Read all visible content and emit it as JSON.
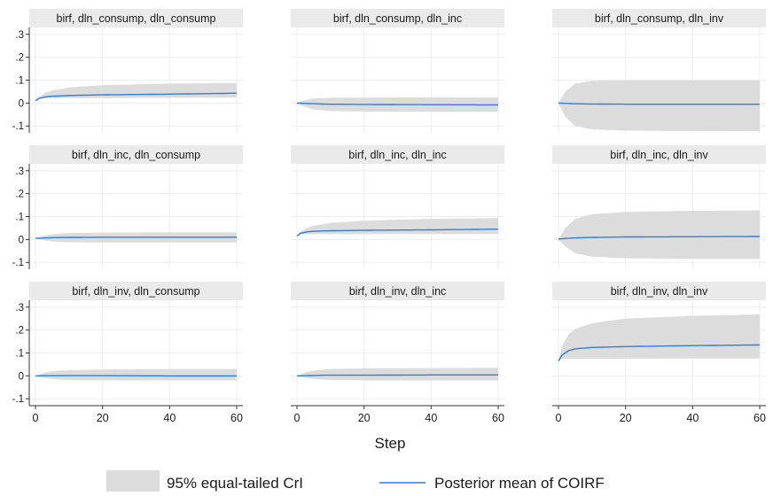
{
  "chart_data": {
    "type": "area",
    "grid": true,
    "legend_position": "bottom",
    "xlabel": "Step",
    "ylabel": "",
    "xlim": [
      0,
      60
    ],
    "ylim": [
      -0.1,
      0.3
    ],
    "x_ticks": [
      "0",
      "20",
      "40",
      "60"
    ],
    "y_ticks": [
      "-.1",
      "0",
      ".1",
      ".2",
      ".3"
    ],
    "colors": {
      "band": "#dcdcdc",
      "line": "#2f7ed8",
      "strip": "#eaeaea"
    },
    "legend": [
      {
        "label": "95% equal-tailed CrI",
        "kind": "band"
      },
      {
        "label": "Posterior mean of COIRF",
        "kind": "line"
      }
    ],
    "panels": [
      {
        "title": "birf, dln_consump, dln_consump",
        "mean": {
          "x": [
            0,
            1,
            3,
            5,
            10,
            20,
            40,
            60
          ],
          "y": [
            0.01,
            0.02,
            0.027,
            0.03,
            0.033,
            0.036,
            0.039,
            0.043
          ]
        },
        "lower": {
          "x": [
            0,
            1,
            3,
            5,
            10,
            20,
            40,
            60
          ],
          "y": [
            0.01,
            0.02,
            0.022,
            0.022,
            0.022,
            0.022,
            0.023,
            0.024
          ]
        },
        "upper": {
          "x": [
            0,
            1,
            3,
            5,
            10,
            20,
            40,
            60
          ],
          "y": [
            0.01,
            0.028,
            0.045,
            0.055,
            0.068,
            0.078,
            0.085,
            0.088
          ]
        }
      },
      {
        "title": "birf, dln_consump, dln_inc",
        "mean": {
          "x": [
            0,
            5,
            10,
            20,
            40,
            60
          ],
          "y": [
            0,
            -0.003,
            -0.005,
            -0.006,
            -0.007,
            -0.008
          ]
        },
        "lower": {
          "x": [
            0,
            2,
            5,
            10,
            20,
            40,
            60
          ],
          "y": [
            0,
            -0.015,
            -0.028,
            -0.035,
            -0.037,
            -0.038,
            -0.038
          ]
        },
        "upper": {
          "x": [
            0,
            2,
            5,
            10,
            20,
            40,
            60
          ],
          "y": [
            0,
            0.012,
            0.02,
            0.023,
            0.024,
            0.025,
            0.025
          ]
        }
      },
      {
        "title": "birf, dln_consump, dln_inv",
        "mean": {
          "x": [
            0,
            5,
            10,
            20,
            40,
            60
          ],
          "y": [
            0,
            -0.003,
            -0.004,
            -0.005,
            -0.005,
            -0.005
          ]
        },
        "lower": {
          "x": [
            0,
            2,
            5,
            10,
            20,
            40,
            60
          ],
          "y": [
            0,
            -0.06,
            -0.1,
            -0.115,
            -0.12,
            -0.122,
            -0.123
          ]
        },
        "upper": {
          "x": [
            0,
            2,
            5,
            10,
            20,
            40,
            60
          ],
          "y": [
            0,
            0.05,
            0.085,
            0.097,
            0.1,
            0.1,
            0.1
          ]
        }
      },
      {
        "title": "birf, dln_inc, dln_consump",
        "mean": {
          "x": [
            0,
            5,
            10,
            20,
            40,
            60
          ],
          "y": [
            0.005,
            0.008,
            0.009,
            0.01,
            0.01,
            0.01
          ]
        },
        "lower": {
          "x": [
            0,
            3,
            6,
            10,
            20,
            40,
            60
          ],
          "y": [
            0.005,
            -0.005,
            -0.01,
            -0.012,
            -0.013,
            -0.013,
            -0.013
          ]
        },
        "upper": {
          "x": [
            0,
            3,
            6,
            10,
            20,
            40,
            60
          ],
          "y": [
            0.005,
            0.018,
            0.025,
            0.028,
            0.03,
            0.031,
            0.031
          ]
        }
      },
      {
        "title": "birf, dln_inc, dln_inc",
        "mean": {
          "x": [
            0,
            1,
            3,
            5,
            10,
            20,
            40,
            60
          ],
          "y": [
            0.015,
            0.027,
            0.033,
            0.036,
            0.038,
            0.04,
            0.042,
            0.045
          ]
        },
        "lower": {
          "x": [
            0,
            1,
            3,
            5,
            10,
            20,
            40,
            60
          ],
          "y": [
            0.015,
            0.022,
            0.023,
            0.023,
            0.023,
            0.023,
            0.024,
            0.024
          ]
        },
        "upper": {
          "x": [
            0,
            1,
            3,
            5,
            10,
            20,
            40,
            60
          ],
          "y": [
            0.015,
            0.033,
            0.05,
            0.06,
            0.072,
            0.082,
            0.09,
            0.093
          ]
        }
      },
      {
        "title": "birf, dln_inc, dln_inv",
        "mean": {
          "x": [
            0,
            5,
            10,
            20,
            40,
            60
          ],
          "y": [
            0.002,
            0.007,
            0.009,
            0.011,
            0.012,
            0.013
          ]
        },
        "lower": {
          "x": [
            0,
            2,
            5,
            10,
            20,
            40,
            60
          ],
          "y": [
            0,
            -0.03,
            -0.06,
            -0.075,
            -0.082,
            -0.085,
            -0.085
          ]
        },
        "upper": {
          "x": [
            0,
            2,
            5,
            10,
            20,
            40,
            60
          ],
          "y": [
            0,
            0.05,
            0.09,
            0.11,
            0.12,
            0.125,
            0.127
          ]
        }
      },
      {
        "title": "birf, dln_inv, dln_consump",
        "mean": {
          "x": [
            0,
            5,
            10,
            20,
            40,
            60
          ],
          "y": [
            0,
            0.001,
            0.001,
            0.001,
            0,
            0
          ]
        },
        "lower": {
          "x": [
            0,
            3,
            6,
            10,
            20,
            40,
            60
          ],
          "y": [
            0,
            -0.01,
            -0.015,
            -0.018,
            -0.02,
            -0.02,
            -0.02
          ]
        },
        "upper": {
          "x": [
            0,
            3,
            6,
            10,
            20,
            40,
            60
          ],
          "y": [
            0,
            0.015,
            0.022,
            0.025,
            0.028,
            0.03,
            0.03
          ]
        }
      },
      {
        "title": "birf, dln_inv, dln_inc",
        "mean": {
          "x": [
            0,
            5,
            10,
            20,
            40,
            60
          ],
          "y": [
            0,
            0.002,
            0.003,
            0.003,
            0.004,
            0.004
          ]
        },
        "lower": {
          "x": [
            0,
            3,
            6,
            10,
            20,
            40,
            60
          ],
          "y": [
            0,
            -0.01,
            -0.015,
            -0.018,
            -0.02,
            -0.02,
            -0.02
          ]
        },
        "upper": {
          "x": [
            0,
            3,
            6,
            10,
            20,
            40,
            60
          ],
          "y": [
            0,
            0.018,
            0.025,
            0.03,
            0.033,
            0.034,
            0.035
          ]
        }
      },
      {
        "title": "birf, dln_inv, dln_inv",
        "mean": {
          "x": [
            0,
            1,
            3,
            5,
            10,
            20,
            40,
            60
          ],
          "y": [
            0.065,
            0.09,
            0.11,
            0.118,
            0.124,
            0.128,
            0.132,
            0.135
          ]
        },
        "lower": {
          "x": [
            0,
            1,
            3,
            5,
            10,
            20,
            40,
            60
          ],
          "y": [
            0.065,
            0.075,
            0.075,
            0.075,
            0.075,
            0.075,
            0.076,
            0.076
          ]
        },
        "upper": {
          "x": [
            0,
            1,
            3,
            5,
            10,
            20,
            40,
            60
          ],
          "y": [
            0.065,
            0.13,
            0.18,
            0.205,
            0.23,
            0.25,
            0.262,
            0.268
          ]
        }
      }
    ]
  }
}
